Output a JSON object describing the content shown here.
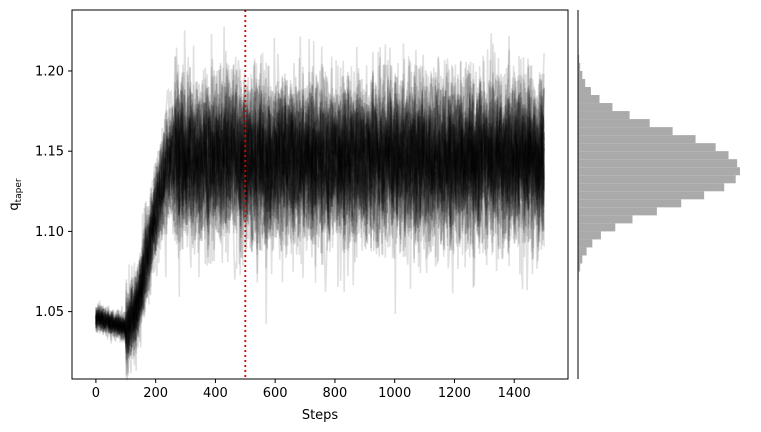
{
  "chart_data": {
    "type": "line",
    "description_free": true,
    "xlabel": "Steps",
    "ylabel": {
      "main": "q",
      "subscript": "taper"
    },
    "xlim": [
      -80,
      1580
    ],
    "ylim": [
      1.008,
      1.238
    ],
    "xticks": [
      0,
      200,
      400,
      600,
      800,
      1000,
      1200,
      1400
    ],
    "xtick_labels": [
      "0",
      "200",
      "400",
      "600",
      "800",
      "1000",
      "1200",
      "1400"
    ],
    "yticks": [
      1.05,
      1.1,
      1.15,
      1.2
    ],
    "ytick_labels": [
      "1.05",
      "1.10",
      "1.15",
      "1.20"
    ],
    "burn_in_step": 500,
    "burn_in_color": "#dd0000",
    "trace_color": "#000000",
    "n_walkers": 40,
    "n_steps": 1500,
    "chain_profile": {
      "start_value": 1.046,
      "start_spread": 0.004,
      "dip_step": 100,
      "dip_value": 1.04,
      "rise_end_step": 260,
      "stationary_mean": 1.142,
      "stationary_sd": 0.02
    },
    "marginal_histogram": {
      "orientation": "horizontal",
      "color": "#aaaaaa",
      "bin_edges": [
        1.07,
        1.075,
        1.08,
        1.085,
        1.09,
        1.095,
        1.1,
        1.105,
        1.11,
        1.115,
        1.12,
        1.125,
        1.13,
        1.135,
        1.14,
        1.145,
        1.15,
        1.155,
        1.16,
        1.165,
        1.17,
        1.175,
        1.18,
        1.185,
        1.19,
        1.195,
        1.2,
        1.205,
        1.21,
        1.215
      ],
      "counts": [
        0.5,
        1.5,
        3,
        6,
        10,
        16,
        26,
        38,
        55,
        72,
        88,
        102,
        110,
        113,
        111,
        105,
        96,
        82,
        66,
        50,
        36,
        24,
        15,
        9,
        5,
        3,
        1.5,
        0.8,
        0.4
      ]
    }
  }
}
